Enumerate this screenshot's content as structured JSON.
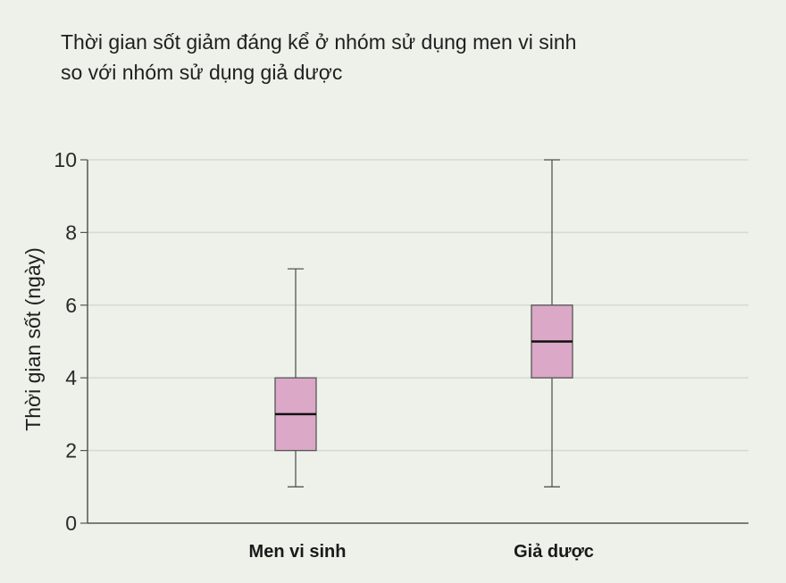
{
  "chart_data": {
    "type": "boxplot",
    "title_lines": [
      "Thời gian sốt giảm đáng kể ở nhóm sử dụng men vi sinh",
      "so với nhóm sử dụng giả dược"
    ],
    "ylabel": "Thời gian sốt (ngày)",
    "xlabel": "",
    "ylim": [
      0,
      10
    ],
    "yticks": [
      0,
      2,
      4,
      6,
      8,
      10
    ],
    "grid": true,
    "categories": [
      "Men vi sinh",
      "Giả dược"
    ],
    "boxes": [
      {
        "min": 1,
        "q1": 2,
        "median": 3,
        "q3": 4,
        "max": 7
      },
      {
        "min": 1,
        "q1": 4,
        "median": 5,
        "q3": 6,
        "max": 10
      }
    ],
    "colors": {
      "box_fill": "#dca8c8",
      "box_stroke": "#555555",
      "median": "#111111",
      "grid": "#d6d9d3",
      "axis": "#555555",
      "background": "#edf1e9"
    }
  }
}
